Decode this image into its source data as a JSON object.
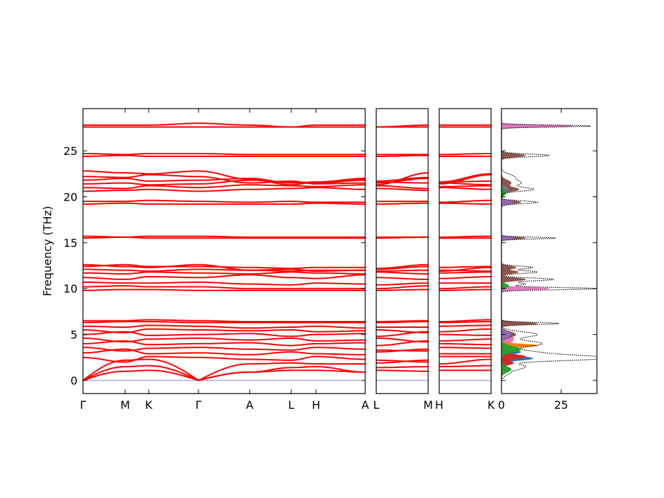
{
  "chart_data": {
    "type": "line",
    "title": "",
    "ylabel": "Frequency (THz)",
    "ylim": [
      -1.43,
      29.6
    ],
    "yticks": [
      0,
      5,
      10,
      15,
      20,
      25
    ],
    "band_color": "#ff0000",
    "zero_line_color": "#0000ff",
    "points": [
      "Γ",
      "M",
      "K",
      "Γ",
      "A",
      "L",
      "H",
      "A"
    ],
    "panels": [
      {
        "labels": [
          "Γ",
          "M",
          "K",
          "Γ",
          "A",
          "L",
          "H",
          "A"
        ],
        "path": [
          0,
          1,
          2,
          3,
          4,
          5,
          6,
          7
        ]
      },
      {
        "labels": [
          "L",
          "M"
        ],
        "path": [
          5,
          1
        ]
      },
      {
        "labels": [
          "H",
          "K"
        ],
        "path": [
          6,
          2
        ]
      }
    ],
    "bands": [
      [
        0,
        1.0,
        1.1,
        0,
        0.9,
        1.1,
        1.1,
        0.9
      ],
      [
        0,
        1.5,
        1.6,
        0,
        0.9,
        1.4,
        1.5,
        0.9
      ],
      [
        0,
        2.2,
        2.3,
        0,
        1.8,
        1.9,
        1.8,
        1.8
      ],
      [
        2.5,
        2.0,
        2.6,
        2.5,
        2.3,
        2.2,
        2.6,
        2.3
      ],
      [
        3.0,
        3.4,
        2.9,
        3.0,
        2.8,
        3.1,
        2.9,
        2.8
      ],
      [
        3.6,
        3.2,
        3.5,
        3.6,
        3.4,
        3.3,
        3.6,
        3.4
      ],
      [
        4.0,
        4.3,
        3.9,
        4.0,
        4.1,
        3.8,
        4.0,
        4.1
      ],
      [
        4.6,
        4.2,
        4.5,
        4.6,
        4.4,
        4.6,
        4.3,
        4.4
      ],
      [
        5.0,
        5.3,
        4.9,
        5.0,
        5.1,
        4.8,
        5.0,
        5.1
      ],
      [
        5.5,
        5.2,
        5.6,
        5.5,
        5.4,
        5.5,
        5.3,
        5.4
      ],
      [
        5.9,
        5.8,
        6.0,
        5.9,
        5.7,
        5.8,
        5.9,
        5.7
      ],
      [
        6.3,
        6.4,
        6.4,
        6.3,
        6.3,
        6.3,
        6.3,
        6.3
      ],
      [
        6.5,
        6.5,
        6.6,
        6.5,
        6.4,
        6.4,
        6.4,
        6.4
      ],
      [
        9.8,
        9.9,
        9.9,
        9.8,
        9.8,
        9.8,
        9.8,
        9.8
      ],
      [
        10.2,
        10.3,
        10.2,
        10.2,
        10.0,
        10.0,
        10.0,
        10.0
      ],
      [
        10.7,
        10.6,
        10.6,
        10.7,
        10.5,
        10.4,
        10.6,
        10.5
      ],
      [
        11.2,
        11.0,
        11.3,
        11.2,
        11.5,
        11.2,
        11.1,
        11.5
      ],
      [
        11.7,
        11.6,
        11.8,
        11.7,
        11.6,
        11.8,
        11.7,
        11.6
      ],
      [
        12.1,
        12.0,
        11.9,
        12.1,
        12.0,
        11.9,
        12.0,
        12.0
      ],
      [
        12.6,
        12.4,
        12.3,
        12.6,
        12.0,
        12.1,
        11.9,
        12.0
      ],
      [
        12.4,
        12.6,
        12.4,
        12.4,
        12.3,
        12.2,
        12.3,
        12.3
      ],
      [
        15.5,
        15.6,
        15.5,
        15.5,
        15.5,
        15.5,
        15.5,
        15.5
      ],
      [
        15.7,
        15.6,
        15.7,
        15.7,
        15.6,
        15.6,
        15.6,
        15.6
      ],
      [
        19.2,
        19.3,
        19.2,
        19.2,
        19.2,
        19.2,
        19.3,
        19.2
      ],
      [
        19.5,
        19.5,
        19.6,
        19.5,
        19.4,
        19.5,
        19.4,
        19.4
      ],
      [
        20.6,
        20.7,
        20.8,
        20.6,
        20.8,
        20.9,
        21.0,
        20.8
      ],
      [
        21.0,
        20.9,
        21.2,
        21.0,
        21.3,
        21.2,
        21.1,
        21.3
      ],
      [
        21.4,
        21.5,
        21.3,
        21.4,
        21.8,
        21.6,
        21.5,
        21.8
      ],
      [
        21.8,
        22.0,
        21.7,
        21.8,
        22.0,
        21.5,
        21.6,
        22.0
      ],
      [
        22.2,
        22.1,
        22.4,
        22.2,
        21.5,
        21.7,
        21.4,
        21.5
      ],
      [
        22.8,
        22.6,
        22.5,
        22.8,
        21.9,
        21.3,
        21.6,
        21.9
      ],
      [
        24.4,
        24.5,
        24.4,
        24.4,
        24.4,
        24.4,
        24.4,
        24.4
      ],
      [
        24.7,
        24.6,
        24.7,
        24.7,
        24.6,
        24.6,
        24.6,
        24.6
      ],
      [
        27.6,
        27.6,
        27.6,
        27.6,
        27.6,
        27.6,
        27.6,
        27.6
      ],
      [
        27.8,
        27.8,
        27.8,
        28.0,
        27.8,
        27.6,
        27.8,
        27.8
      ]
    ],
    "dos": {
      "xlim": [
        0,
        40
      ],
      "xticks": [
        0,
        25
      ],
      "total": {
        "color": "#000000",
        "peaks": [
          [
            27.7,
            38,
            0.1
          ],
          [
            24.5,
            20,
            0.15
          ],
          [
            20.8,
            13,
            0.2
          ],
          [
            21.5,
            8,
            0.3
          ],
          [
            22.2,
            5,
            0.3
          ],
          [
            19.4,
            15,
            0.15
          ],
          [
            15.5,
            23,
            0.1
          ],
          [
            10.0,
            40,
            0.12
          ],
          [
            11,
            22,
            0.15
          ],
          [
            11.8,
            15,
            0.15
          ],
          [
            12.3,
            13,
            0.15
          ],
          [
            10.5,
            10,
            0.15
          ],
          [
            6.2,
            24,
            0.12
          ],
          [
            5,
            15,
            0.3
          ],
          [
            4,
            17,
            0.3
          ],
          [
            3,
            15,
            0.3
          ],
          [
            2.3,
            30,
            0.2
          ],
          [
            2.6,
            25,
            0.2
          ],
          [
            1.5,
            10,
            0.3
          ],
          [
            0.8,
            3,
            0.3
          ]
        ]
      },
      "partials": [
        {
          "color": "#e377c2",
          "peaks": [
            [
              27.7,
              30,
              0.1
            ],
            [
              24.5,
              5,
              0.15
            ],
            [
              10.0,
              20,
              0.12
            ],
            [
              6.2,
              5,
              0.15
            ],
            [
              4.5,
              5,
              0.5
            ],
            [
              3,
              4,
              0.5
            ]
          ]
        },
        {
          "color": "#8c564b",
          "peaks": [
            [
              24.5,
              10,
              0.15
            ],
            [
              20.8,
              7,
              0.2
            ],
            [
              21.5,
              4,
              0.3
            ],
            [
              19.4,
              8,
              0.15
            ],
            [
              15.5,
              10,
              0.1
            ],
            [
              11,
              10,
              0.15
            ],
            [
              11.8,
              7,
              0.15
            ],
            [
              12.3,
              6,
              0.15
            ],
            [
              6.2,
              15,
              0.12
            ],
            [
              5,
              6,
              0.3
            ]
          ]
        },
        {
          "color": "#9467bd",
          "peaks": [
            [
              19.4,
              5,
              0.15
            ],
            [
              15.5,
              5,
              0.1
            ],
            [
              20.8,
              3,
              0.2
            ],
            [
              5,
              4,
              0.3
            ]
          ]
        },
        {
          "color": "#ff7f0e",
          "peaks": [
            [
              3.8,
              15,
              0.15
            ]
          ]
        },
        {
          "color": "#1f77b4",
          "peaks": [
            [
              2.4,
              13,
              0.2
            ],
            [
              3.1,
              8,
              0.2
            ]
          ]
        },
        {
          "color": "#d62728",
          "peaks": [
            [
              2.6,
              10,
              0.2
            ],
            [
              1.9,
              5,
              0.2
            ]
          ]
        },
        {
          "color": "#2ca02c",
          "peaks": [
            [
              3.4,
              8,
              0.3
            ],
            [
              1.2,
              4,
              0.3
            ],
            [
              20.5,
              2,
              0.3
            ],
            [
              10.3,
              3,
              0.2
            ]
          ]
        }
      ]
    }
  }
}
